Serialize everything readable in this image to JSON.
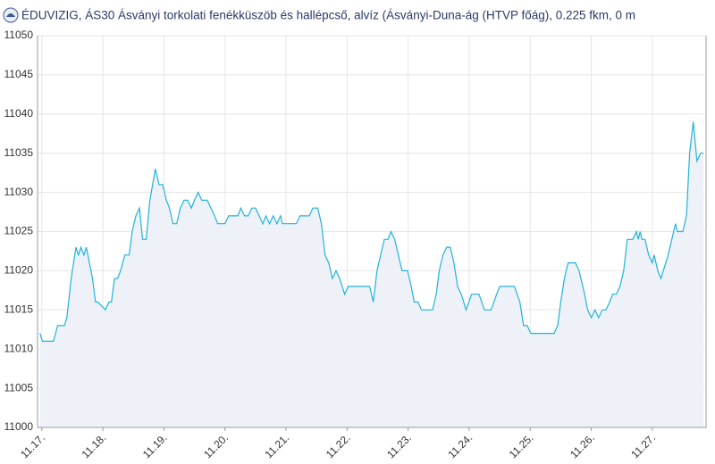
{
  "chart_data": {
    "type": "line",
    "title": "ÉDUVIZIG, ÁS30 Ásványi torkolati fenékküszöb és hallépcső, alvíz (Ásványi-Duna-ág (HTVP főág), 0.225 fkm, 0 m",
    "x": [
      -0.03,
      0.01,
      0.19,
      0.26,
      0.37,
      0.41,
      0.48,
      0.56,
      0.6,
      0.64,
      0.69,
      0.73,
      0.78,
      0.83,
      0.88,
      0.92,
      1.04,
      1.1,
      1.14,
      1.19,
      1.24,
      1.29,
      1.36,
      1.43,
      1.48,
      1.54,
      1.6,
      1.65,
      1.71,
      1.77,
      1.86,
      1.92,
      1.98,
      2.04,
      2.09,
      2.15,
      2.21,
      2.27,
      2.33,
      2.39,
      2.45,
      2.5,
      2.56,
      2.62,
      2.71,
      2.77,
      2.83,
      2.88,
      3.0,
      3.06,
      3.21,
      3.26,
      3.32,
      3.38,
      3.44,
      3.5,
      3.56,
      3.62,
      3.67,
      3.73,
      3.79,
      3.85,
      3.91,
      3.94,
      4.17,
      4.23,
      4.38,
      4.44,
      4.52,
      4.58,
      4.64,
      4.7,
      4.76,
      4.82,
      4.88,
      4.96,
      5.02,
      5.37,
      5.43,
      5.49,
      5.55,
      5.61,
      5.67,
      5.72,
      5.78,
      5.84,
      5.9,
      5.99,
      6.05,
      6.1,
      6.16,
      6.22,
      6.4,
      6.46,
      6.51,
      6.57,
      6.63,
      6.69,
      6.75,
      6.81,
      6.87,
      6.95,
      7.04,
      7.16,
      7.25,
      7.36,
      7.45,
      7.5,
      7.74,
      7.83,
      7.89,
      7.95,
      8.01,
      8.39,
      8.45,
      8.5,
      8.56,
      8.62,
      8.74,
      8.8,
      8.89,
      8.94,
      9.0,
      9.06,
      9.12,
      9.18,
      9.24,
      9.3,
      9.35,
      9.41,
      9.47,
      9.53,
      9.59,
      9.68,
      9.74,
      9.77,
      9.8,
      9.83,
      9.88,
      9.94,
      10.0,
      10.03,
      10.09,
      10.14,
      10.26,
      10.32,
      10.38,
      10.41,
      10.5,
      10.56,
      10.61,
      10.67,
      10.73,
      10.79,
      10.84
    ],
    "series": [
      {
        "color": "#22b3d9",
        "values": [
          11012,
          11011,
          11011,
          11013,
          11013,
          11014,
          11019,
          11023,
          11022,
          11023,
          11022,
          11023,
          11021,
          11019,
          11016,
          11016,
          11015,
          11016,
          11016,
          11019,
          11019,
          11020,
          11022,
          11022,
          11025,
          11027,
          11028,
          11024,
          11024,
          11029,
          11033,
          11031,
          11031,
          11029,
          11028,
          11026,
          11026,
          11028,
          11029,
          11029,
          11028,
          11029,
          11030,
          11029,
          11029,
          11028,
          11027,
          11026,
          11026,
          11027,
          11027,
          11028,
          11027,
          11027,
          11028,
          11028,
          11027,
          11026,
          11027,
          11026,
          11027,
          11026,
          11027,
          11026,
          11026,
          11027,
          11027,
          11028,
          11028,
          11026,
          11022,
          11021,
          11019,
          11020,
          11019,
          11017,
          11018,
          11018,
          11016,
          11020,
          11022,
          11024,
          11024,
          11025,
          11024,
          11022,
          11020,
          11020,
          11018,
          11016,
          11016,
          11015,
          11015,
          11017,
          11020,
          11022,
          11023,
          11023,
          11021,
          11018,
          11017,
          11015,
          11017,
          11017,
          11015,
          11015,
          11017,
          11018,
          11018,
          11016,
          11013,
          11013,
          11012,
          11012,
          11013,
          11016,
          11019,
          11021,
          11021,
          11020,
          11017,
          11015,
          11014,
          11015,
          11014,
          11015,
          11015,
          11016,
          11017,
          11017,
          11018,
          11020,
          11024,
          11024,
          11025,
          11024,
          11025,
          11024,
          11024,
          11022,
          11021,
          11022,
          11020,
          11019,
          11022,
          11024,
          11026,
          11025,
          11025,
          11027,
          11035,
          11039,
          11034,
          11035,
          11035
        ]
      }
    ],
    "xlim": [
      -0.07,
      10.88
    ],
    "xticks": [
      {
        "value": 0,
        "label": "11.17."
      },
      {
        "value": 1,
        "label": "11.18."
      },
      {
        "value": 2,
        "label": "11.19."
      },
      {
        "value": 3,
        "label": "11.20."
      },
      {
        "value": 4,
        "label": "11.21."
      },
      {
        "value": 5,
        "label": "11.22."
      },
      {
        "value": 6,
        "label": "11.23."
      },
      {
        "value": 7,
        "label": "11.24."
      },
      {
        "value": 8,
        "label": "11.25."
      },
      {
        "value": 9,
        "label": "11.26."
      },
      {
        "value": 10,
        "label": "11.27."
      }
    ],
    "ylim": [
      11000,
      11050
    ],
    "yticks": [
      11000,
      11005,
      11010,
      11015,
      11020,
      11025,
      11030,
      11035,
      11040,
      11045,
      11050
    ],
    "grid": true
  }
}
